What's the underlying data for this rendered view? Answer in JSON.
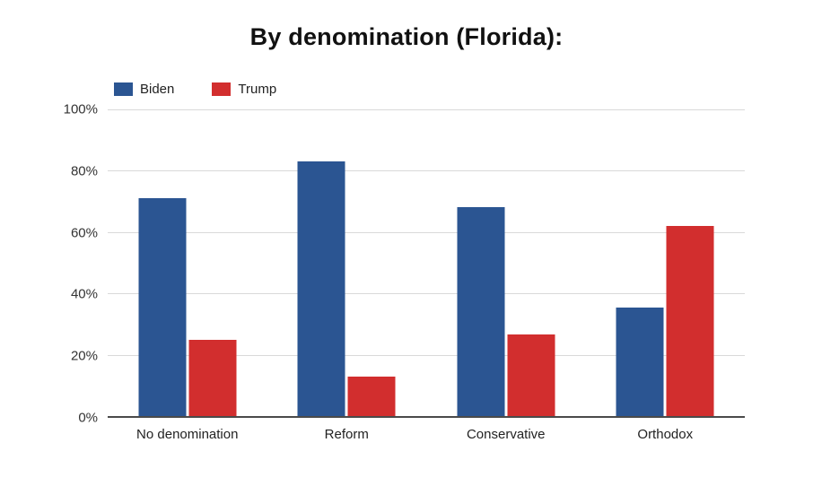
{
  "chart_data": {
    "type": "bar",
    "title": "By denomination (Florida):",
    "categories": [
      "No denomination",
      "Reform",
      "Conservative",
      "Orthodox"
    ],
    "series": [
      {
        "name": "Biden",
        "color": "#2b5592",
        "values": [
          71,
          83,
          68,
          35.5
        ]
      },
      {
        "name": "Trump",
        "color": "#d22e2e",
        "values": [
          25,
          13,
          26.5,
          62
        ]
      }
    ],
    "ylim": [
      0,
      100
    ],
    "yticks": [
      0,
      20,
      40,
      60,
      80,
      100
    ],
    "ytick_suffix": "%",
    "grid": true,
    "legend_position": "top-left",
    "gridline_color": "#d9d9d9",
    "axis_line_color": "#4a4a4a"
  }
}
